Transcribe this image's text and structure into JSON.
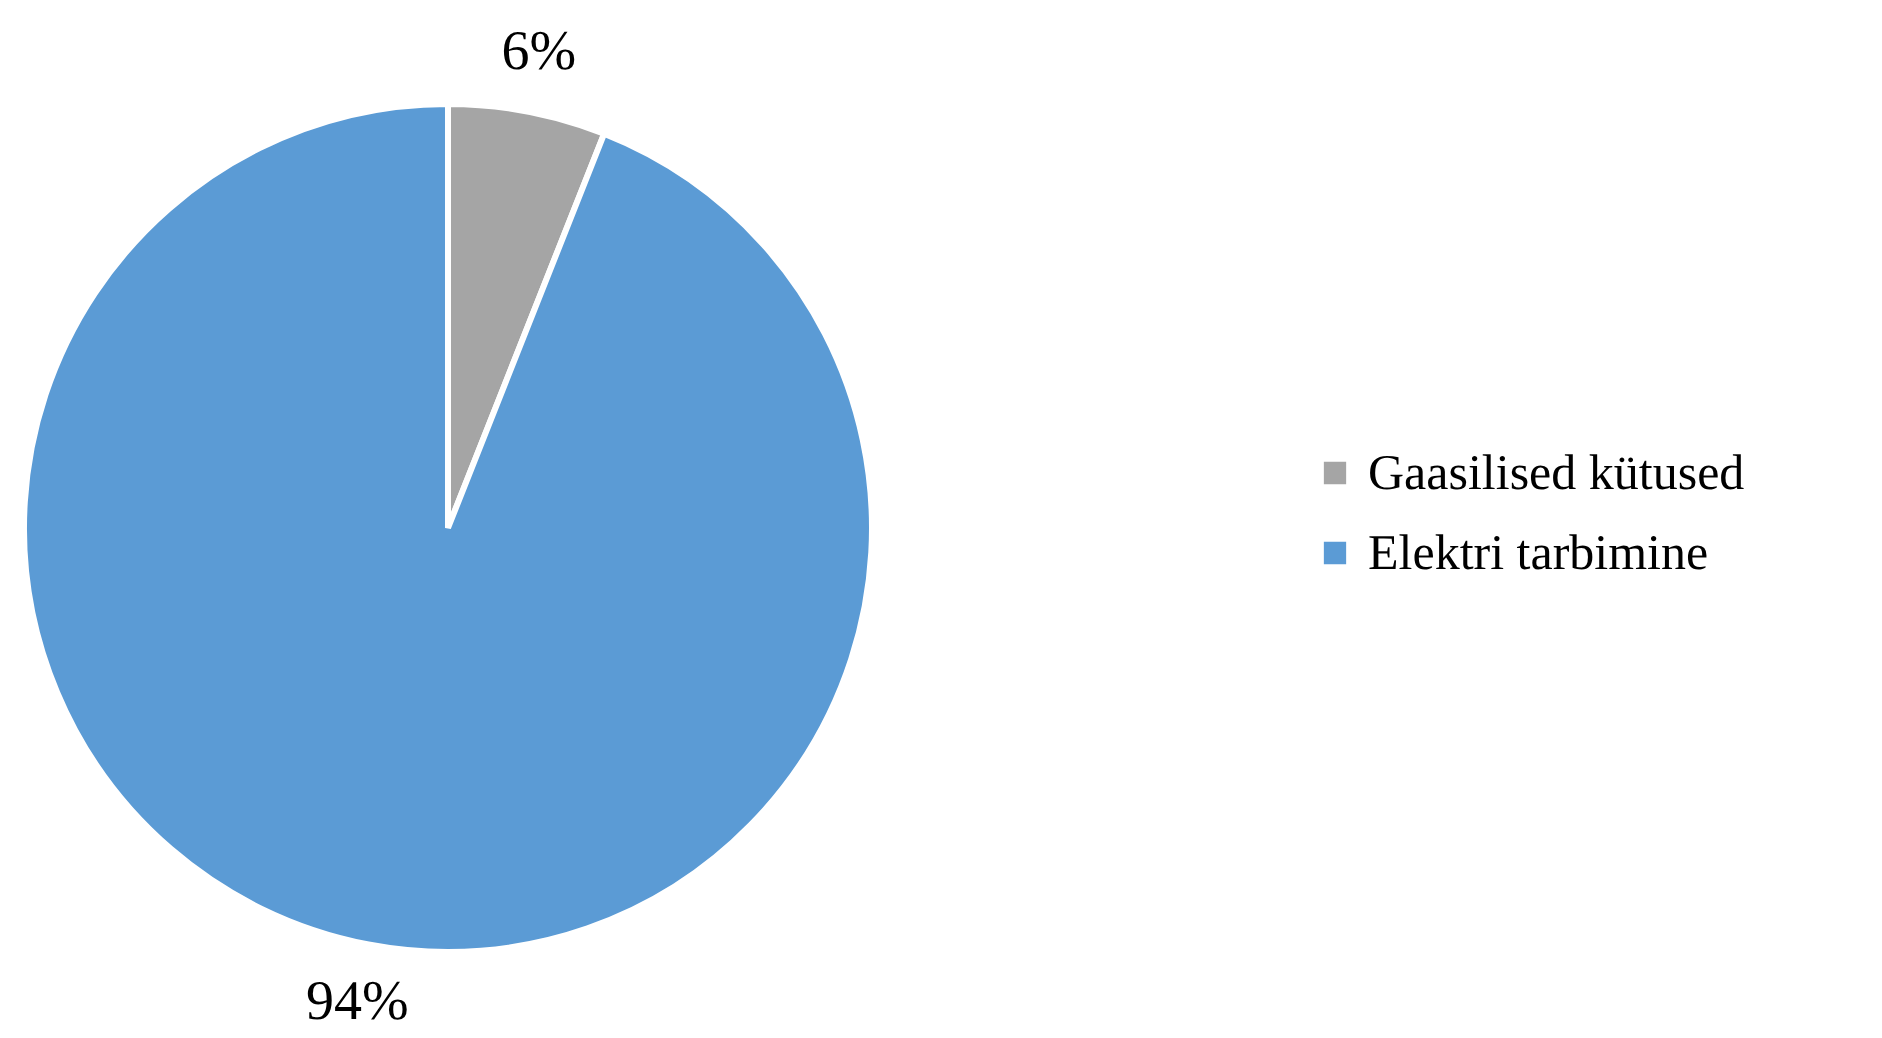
{
  "chart_data": {
    "type": "pie",
    "categories": [
      "Gaasilised kütused",
      "Elektri tarbimine"
    ],
    "values": [
      6,
      94
    ],
    "colors": [
      "#a5a5a5",
      "#5b9bd5"
    ],
    "value_labels": [
      "6%",
      "94%"
    ],
    "legend": "right"
  }
}
